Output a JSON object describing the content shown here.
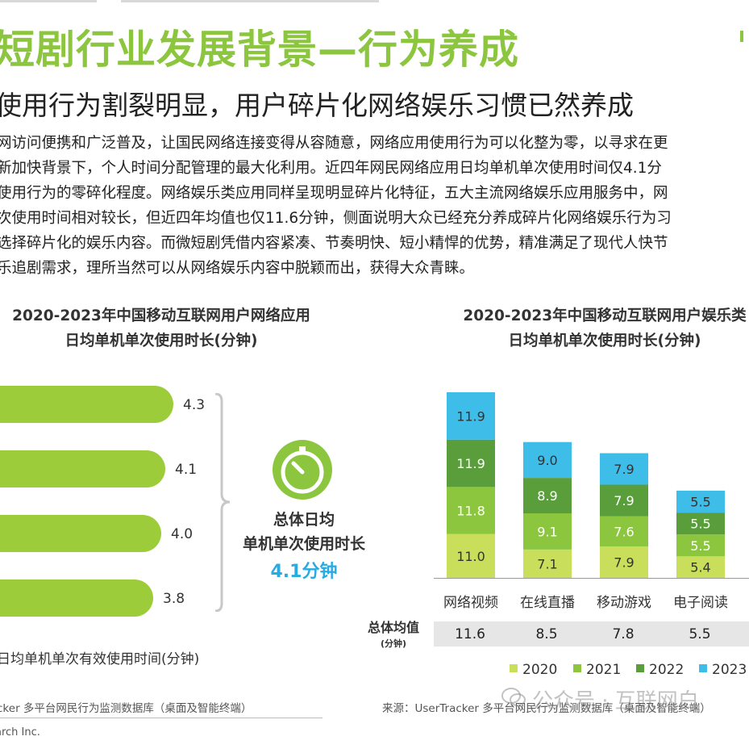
{
  "header": {
    "main_title": "短剧行业发展背景—行为养成",
    "subtitle": "使用行为割裂明显，用户碎片化网络娱乐习惯已然养成"
  },
  "body_paragraph": [
    "网访问便携和广泛普及，让国民网络连接变得从容随意，网络应用使用行为可以化整为零，以寻求在更",
    "新加快背景下，个人时间分配管理的最大化利用。近四年网民网络应用日均单机单次使用时间仅4.1分",
    "使用行为的零碎化程度。网络娱乐类应用同样呈现明显碎片化特征，五大主流网络娱乐应用服务中，网",
    "次使用时间相对较长，但近四年均值也仅11.6分钟，侧面说明大众已经充分养成碎片化网络娱乐行为习",
    "选择碎片化的娱乐内容。而微短剧凭借内容紧凑、节奏明快、短小精悍的优势，精准满足了现代人快节",
    "乐追剧需求，理所当然可以从网络娱乐内容中脱颖而出，获得大众青睐。"
  ],
  "left_chart": {
    "title_line1": "2020-2023年中国移动互联网用户网络应用",
    "title_line2": "日均单机单次使用时长(分钟)",
    "footnote": "日均单机单次有效使用时间(分钟)",
    "summary_label_line1": "总体日均",
    "summary_label_line2": "单机单次使用时长",
    "summary_value": "4.1分钟",
    "accent_color": "#9ccc3a",
    "highlight_color": "#29abe2",
    "icon": "stopwatch-icon"
  },
  "right_chart": {
    "title_line1": "2020-2023年中国移动互联网用户娱乐类",
    "title_line2": "日均单机单次使用时长(分钟)",
    "avg_label": "总体均值",
    "avg_unit": "(分钟)",
    "averages": [
      "11.6",
      "8.5",
      "7.8",
      "5.5"
    ]
  },
  "chart_data": [
    {
      "type": "bar",
      "orientation": "horizontal",
      "categories": [
        "",
        "",
        "",
        ""
      ],
      "values": [
        4.3,
        4.1,
        4.0,
        3.8
      ],
      "value_labels": [
        "4.3",
        "4.1",
        "4.0",
        "3.8"
      ],
      "title": "2020-2023年中国移动互联网用户网络应用日均单机单次使用时长(分钟)",
      "xlabel": "日均单机单次有效使用时间(分钟)",
      "ylabel": "",
      "xlim": [
        0,
        4.3
      ],
      "grid": false,
      "colors": [
        "#9ccc3a"
      ]
    },
    {
      "type": "bar",
      "stacked": true,
      "categories": [
        "网络视频",
        "在线直播",
        "移动游戏",
        "电子阅读"
      ],
      "series": [
        {
          "name": "2020",
          "values": [
            11.0,
            7.1,
            7.9,
            5.4
          ],
          "labels": [
            "11.0",
            "7.1",
            "7.9",
            "5.4"
          ],
          "color": "#c9df5c",
          "text_color": "#333333"
        },
        {
          "name": "2021",
          "values": [
            11.8,
            9.1,
            7.6,
            5.5
          ],
          "labels": [
            "11.8",
            "9.1",
            "7.6",
            "5.5"
          ],
          "color": "#8cc63f",
          "text_color": "#ffffff"
        },
        {
          "name": "2022",
          "values": [
            11.9,
            8.9,
            7.9,
            5.5
          ],
          "labels": [
            "11.9",
            "8.9",
            "7.9",
            "5.5"
          ],
          "color": "#5a9e3c",
          "text_color": "#ffffff"
        },
        {
          "name": "2023",
          "values": [
            11.9,
            9.0,
            7.9,
            5.5
          ],
          "labels": [
            "11.9",
            "9.0",
            "7.9",
            "5.5"
          ],
          "color": "#3dbde8",
          "text_color": "#333333"
        }
      ],
      "title": "2020-2023年中国移动互联网用户娱乐类日均单机单次使用时长(分钟)",
      "xlabel": "",
      "ylabel": "",
      "ylim": [
        0,
        46.6
      ],
      "grid": false,
      "legend": "bottom"
    }
  ],
  "footer": {
    "source_left": "cker 多平台网民行为监测数据库（桌面及智能终端）",
    "source_right": "来源：UserTracker 多平台网民行为监测数据库（桌面及智能终端）",
    "copyright": "arch Inc.",
    "watermark": "公众号 · 互联网白"
  }
}
